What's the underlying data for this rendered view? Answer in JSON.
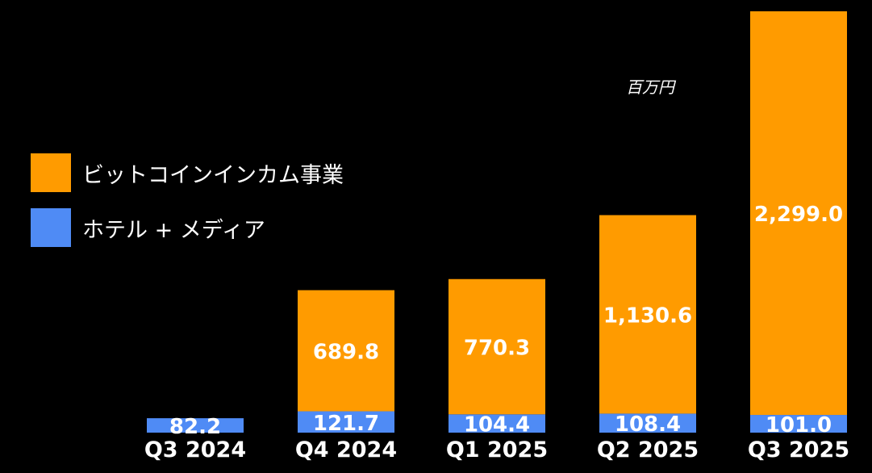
{
  "unit_label": "百万円",
  "legend": [
    {
      "label": "ビットコインインカム事業",
      "color": "#FF9B00"
    },
    {
      "label": "ホテル + メディア",
      "color": "#4F8BF5"
    }
  ],
  "chart_data": {
    "type": "bar",
    "stacked": true,
    "categories": [
      "Q3 2024",
      "Q4 2024",
      "Q1 2025",
      "Q2 2025",
      "Q3 2025"
    ],
    "series": [
      {
        "name": "ホテル + メディア",
        "color": "#4F8BF5",
        "values": [
          82.2,
          121.7,
          104.4,
          108.4,
          101.0
        ],
        "labels": [
          "82.2",
          "121.7",
          "104.4",
          "108.4",
          "101.0"
        ]
      },
      {
        "name": "ビットコインインカム事業",
        "color": "#FF9B00",
        "values": [
          null,
          689.8,
          770.3,
          1130.6,
          2299.0
        ],
        "labels": [
          "",
          "689.8",
          "770.3",
          "1,130.6",
          "2,299.0"
        ]
      }
    ],
    "ylim": [
      0,
      2400
    ],
    "grid": false,
    "legend_position": "left",
    "title": "",
    "xlabel": "",
    "ylabel": ""
  }
}
